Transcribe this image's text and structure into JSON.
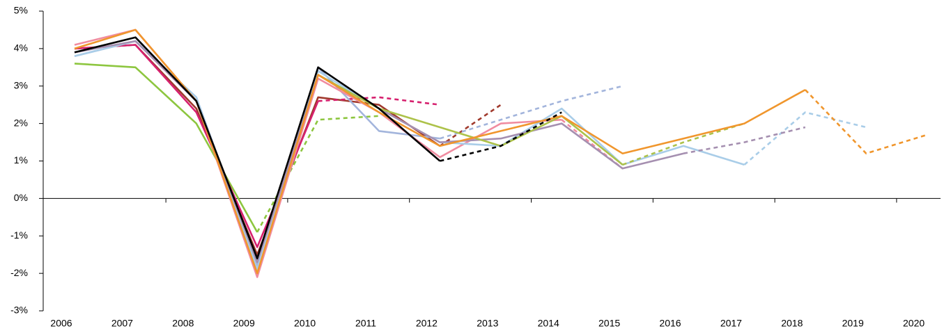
{
  "chart_data": {
    "type": "line",
    "categories": [
      "2006",
      "2007",
      "2008",
      "2009",
      "2010",
      "2011",
      "2012",
      "2013",
      "2014",
      "2015",
      "2016",
      "2017",
      "2018",
      "2019",
      "2020"
    ],
    "ylim": [
      -3,
      5
    ],
    "yticks": [
      {
        "value": -3,
        "label": "-3%"
      },
      {
        "value": -2,
        "label": "-2%"
      },
      {
        "value": -1,
        "label": "-1%"
      },
      {
        "value": 0,
        "label": "0%"
      },
      {
        "value": 1,
        "label": "1%"
      },
      {
        "value": 2,
        "label": "2%"
      },
      {
        "value": 3,
        "label": "3%"
      },
      {
        "value": 4,
        "label": "4%"
      },
      {
        "value": 5,
        "label": "5%"
      }
    ],
    "grid": false,
    "series": [
      {
        "color": "#8dc63f",
        "dashed": false,
        "values": [
          3.6,
          3.5,
          2.0,
          -0.9,
          null,
          null,
          null,
          null,
          null,
          null,
          null,
          null,
          null,
          null,
          null
        ]
      },
      {
        "color": "#8dc63f",
        "dashed": true,
        "values": [
          null,
          null,
          null,
          -0.9,
          2.1,
          2.2,
          null,
          null,
          null,
          null,
          null,
          null,
          null,
          null,
          null
        ]
      },
      {
        "color": "#a0392c",
        "dashed": false,
        "values": [
          4.0,
          4.1,
          2.4,
          -1.5,
          2.7,
          2.5,
          1.4,
          null,
          null,
          null,
          null,
          null,
          null,
          null,
          null
        ]
      },
      {
        "color": "#a0392c",
        "dashed": true,
        "values": [
          null,
          null,
          null,
          null,
          null,
          null,
          1.4,
          2.5,
          null,
          null,
          null,
          null,
          null,
          null,
          null
        ]
      },
      {
        "color": "#d6206e",
        "dashed": false,
        "values": [
          4.0,
          4.1,
          2.3,
          -1.3,
          2.6,
          null,
          null,
          null,
          null,
          null,
          null,
          null,
          null,
          null,
          null
        ]
      },
      {
        "color": "#d6206e",
        "dashed": true,
        "values": [
          null,
          null,
          null,
          null,
          2.6,
          2.7,
          2.5,
          null,
          null,
          null,
          null,
          null,
          null,
          null,
          null
        ]
      },
      {
        "color": "#a3b5dc",
        "dashed": false,
        "values": [
          3.8,
          4.2,
          2.7,
          -1.8,
          3.5,
          1.8,
          1.6,
          null,
          null,
          null,
          null,
          null,
          null,
          null,
          null
        ]
      },
      {
        "color": "#a3b5dc",
        "dashed": true,
        "values": [
          null,
          null,
          null,
          null,
          null,
          null,
          1.6,
          2.1,
          2.6,
          3.0,
          null,
          null,
          null,
          null,
          null
        ]
      },
      {
        "color": "#f08ca0",
        "dashed": false,
        "values": [
          4.1,
          4.5,
          2.6,
          -2.1,
          3.2,
          2.3,
          1.1,
          2.0,
          2.1,
          null,
          null,
          null,
          null,
          null,
          null
        ]
      },
      {
        "color": "#f08ca0",
        "dashed": true,
        "values": [
          null,
          null,
          null,
          null,
          null,
          null,
          null,
          null,
          2.1,
          0.8,
          null,
          null,
          null,
          null,
          null
        ]
      },
      {
        "color": "#a9cde8",
        "dashed": false,
        "values": [
          3.8,
          4.2,
          2.7,
          -1.9,
          3.4,
          2.4,
          1.5,
          1.4,
          2.4,
          0.9,
          1.4,
          0.9,
          null,
          null,
          null
        ]
      },
      {
        "color": "#a9cde8",
        "dashed": true,
        "values": [
          null,
          null,
          null,
          null,
          null,
          null,
          null,
          null,
          null,
          null,
          null,
          0.9,
          2.3,
          1.9,
          null
        ]
      },
      {
        "color": "#a58fb0",
        "dashed": false,
        "values": [
          3.9,
          4.2,
          2.6,
          -1.7,
          3.3,
          2.4,
          1.5,
          1.6,
          2.0,
          0.8,
          1.2,
          null,
          null,
          null,
          null
        ]
      },
      {
        "color": "#a58fb0",
        "dashed": true,
        "values": [
          null,
          null,
          null,
          null,
          null,
          null,
          null,
          null,
          null,
          null,
          1.2,
          1.5,
          1.9,
          null,
          null
        ]
      },
      {
        "color": "#adc24a",
        "dashed": false,
        "values": [
          null,
          null,
          null,
          null,
          3.3,
          2.4,
          1.9,
          1.4,
          2.2,
          0.9,
          null,
          null,
          null,
          null,
          null
        ]
      },
      {
        "color": "#adc24a",
        "dashed": true,
        "values": [
          null,
          null,
          null,
          null,
          null,
          null,
          null,
          null,
          null,
          0.9,
          1.5,
          2.0,
          null,
          null,
          null
        ]
      },
      {
        "color": "#f0962d",
        "dashed": false,
        "values": [
          4.0,
          4.5,
          2.6,
          -2.0,
          3.3,
          2.3,
          1.4,
          1.8,
          2.2,
          1.2,
          1.6,
          2.0,
          2.9,
          null,
          null
        ]
      },
      {
        "color": "#f0962d",
        "dashed": true,
        "values": [
          null,
          null,
          null,
          null,
          null,
          null,
          null,
          null,
          null,
          null,
          null,
          null,
          2.9,
          1.2,
          1.7
        ]
      },
      {
        "color": "#000000",
        "dashed": false,
        "values": [
          3.9,
          4.3,
          2.6,
          -1.6,
          3.5,
          2.4,
          1.0,
          null,
          null,
          null,
          null,
          null,
          null,
          null,
          null
        ]
      },
      {
        "color": "#000000",
        "dashed": true,
        "values": [
          null,
          null,
          null,
          null,
          null,
          null,
          1.0,
          1.4,
          2.3,
          null,
          null,
          null,
          null,
          null,
          null
        ]
      }
    ]
  }
}
